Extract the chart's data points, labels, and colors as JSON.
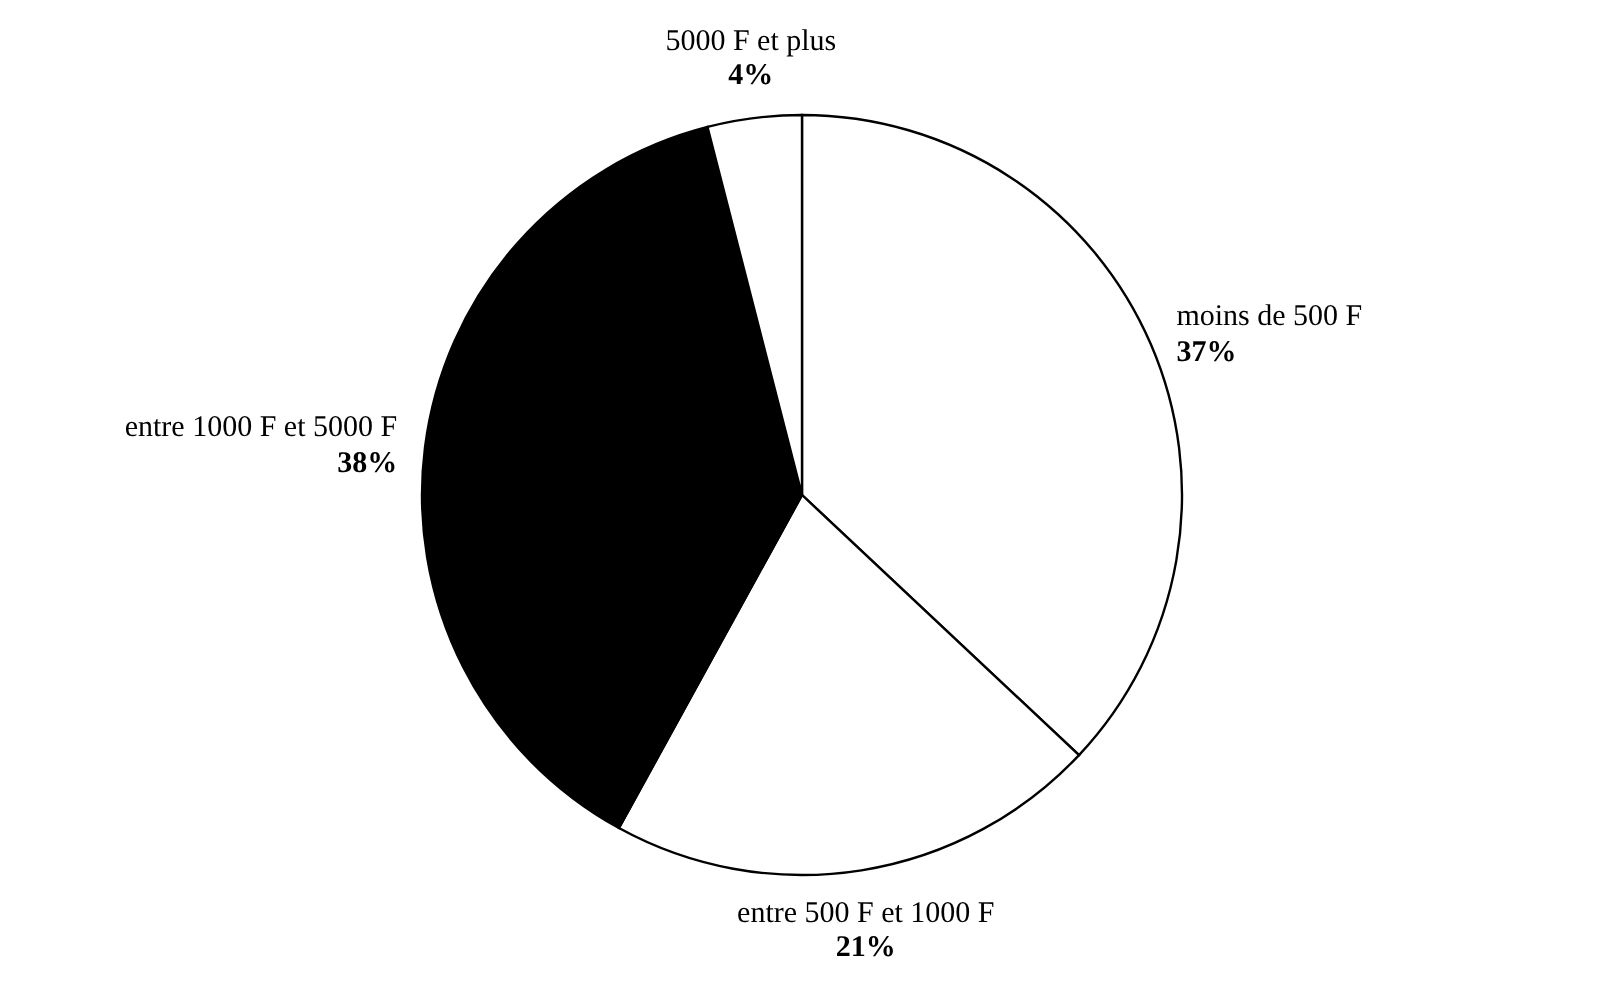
{
  "chart_data": {
    "type": "pie",
    "categories": [
      "moins de 500 F",
      "entre 500 F et 1000 F",
      "entre 1000 F et 5000 F",
      "5000 F et plus"
    ],
    "values": [
      37,
      21,
      38,
      4
    ],
    "value_labels": [
      "37%",
      "21%",
      "38%",
      "4%"
    ],
    "colors": [
      "#ffffff",
      "#ffffff",
      "#000000",
      "#ffffff"
    ]
  }
}
